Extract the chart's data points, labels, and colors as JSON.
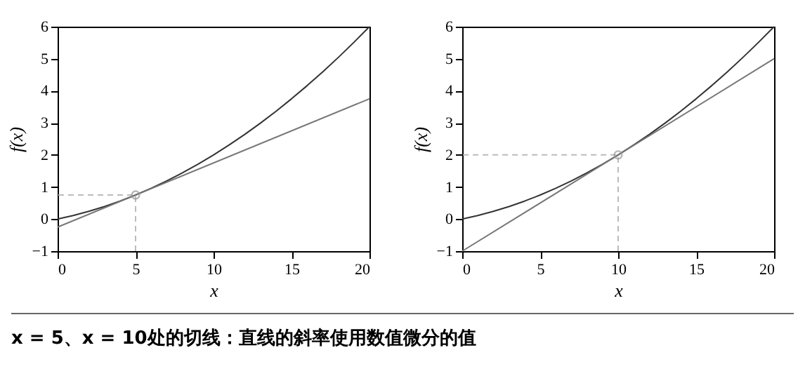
{
  "chart_data": [
    {
      "type": "line",
      "xlabel": "x",
      "ylabel": "f(x)",
      "xlim": [
        0,
        20
      ],
      "xticks": [
        0,
        5,
        10,
        15,
        20
      ],
      "ylim": [
        -1,
        6
      ],
      "yticks": [
        -1,
        0,
        1,
        2,
        3,
        4,
        5,
        6
      ],
      "grid": false,
      "annotations": [
        "x = 5、x = 10处的切线：直线的斜率使用数值微分的值"
      ],
      "series": [
        {
          "type": "line",
          "color": "#333333",
          "x": [
            0,
            1,
            2,
            3,
            4,
            5,
            6,
            7,
            8,
            9,
            10,
            11,
            12,
            13,
            14,
            15,
            16,
            17,
            18,
            19,
            20
          ],
          "values": [
            0,
            0.11,
            0.24,
            0.39,
            0.56,
            0.75,
            0.96,
            1.19,
            1.44,
            1.71,
            2,
            2.31,
            2.64,
            2.99,
            3.36,
            3.75,
            4.16,
            4.59,
            5.04,
            5.51,
            6
          ]
        },
        {
          "type": "line",
          "color": "#777777",
          "x": [
            0,
            20
          ],
          "values": [
            -0.25,
            3.75
          ]
        },
        {
          "type": "line",
          "color": "#bbbbbb",
          "line_style": "dashed",
          "x": [
            5,
            5,
            0
          ],
          "values": [
            -1,
            0.75,
            0.75
          ]
        },
        {
          "type": "scatter",
          "color": "#999999",
          "marker": "circle",
          "x": [
            5
          ],
          "values": [
            0.75
          ]
        }
      ]
    },
    {
      "type": "line",
      "xlabel": "x",
      "ylabel": "f(x)",
      "xlim": [
        0,
        20
      ],
      "xticks": [
        0,
        5,
        10,
        15,
        20
      ],
      "ylim": [
        -1,
        6
      ],
      "yticks": [
        -1,
        0,
        1,
        2,
        3,
        4,
        5,
        6
      ],
      "grid": false,
      "series": [
        {
          "type": "line",
          "color": "#333333",
          "x": [
            0,
            1,
            2,
            3,
            4,
            5,
            6,
            7,
            8,
            9,
            10,
            11,
            12,
            13,
            14,
            15,
            16,
            17,
            18,
            19,
            20
          ],
          "values": [
            0,
            0.11,
            0.24,
            0.39,
            0.56,
            0.75,
            0.96,
            1.19,
            1.44,
            1.71,
            2,
            2.31,
            2.64,
            2.99,
            3.36,
            3.75,
            4.16,
            4.59,
            5.04,
            5.51,
            6
          ]
        },
        {
          "type": "line",
          "color": "#777777",
          "x": [
            0,
            20
          ],
          "values": [
            -1,
            5
          ]
        },
        {
          "type": "line",
          "color": "#bbbbbb",
          "line_style": "dashed",
          "x": [
            10,
            10,
            0
          ],
          "values": [
            -1,
            2,
            2
          ]
        },
        {
          "type": "scatter",
          "color": "#999999",
          "marker": "circle",
          "x": [
            10
          ],
          "values": [
            2
          ]
        }
      ]
    }
  ]
}
